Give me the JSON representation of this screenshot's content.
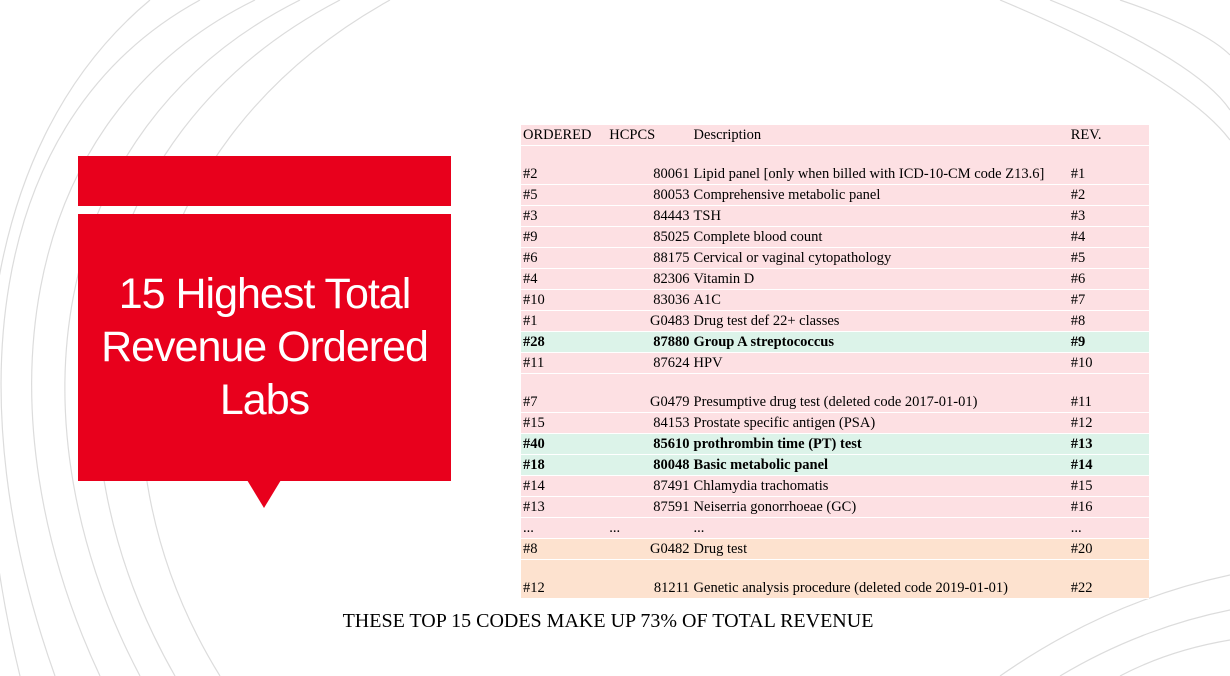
{
  "slide": {
    "title": "15 Highest Total Revenue Ordered Labs",
    "note": "THESE TOP 15 CODES MAKE UP 73% OF TOTAL REVENUE",
    "accent_color": "#e8001c"
  },
  "table": {
    "headers": {
      "ordered": "ORDERED",
      "hcpcs": "HCPCS",
      "description": "Description",
      "rev": "REV."
    },
    "rows": [
      {
        "ordered": "#2",
        "hcpcs": "80061",
        "description": "Lipid panel [only when billed with ICD-10-CM code Z13.6]",
        "rev": "#1",
        "style": "pink"
      },
      {
        "ordered": "#5",
        "hcpcs": "80053",
        "description": "Comprehensive metabolic panel",
        "rev": "#2",
        "style": "pink"
      },
      {
        "ordered": "#3",
        "hcpcs": "84443",
        "description": "TSH",
        "rev": "#3",
        "style": "pink"
      },
      {
        "ordered": "#9",
        "hcpcs": "85025",
        "description": "Complete blood count",
        "rev": "#4",
        "style": "pink"
      },
      {
        "ordered": "#6",
        "hcpcs": "88175",
        "description": "Cervical or vaginal cytopathology",
        "rev": "#5",
        "style": "pink"
      },
      {
        "ordered": "#4",
        "hcpcs": "82306",
        "description": "Vitamin D",
        "rev": "#6",
        "style": "pink"
      },
      {
        "ordered": "#10",
        "hcpcs": "83036",
        "description": "A1C",
        "rev": "#7",
        "style": "pink"
      },
      {
        "ordered": "#1",
        "hcpcs": "G0483",
        "description": "Drug test def 22+ classes",
        "rev": "#8",
        "style": "pink"
      },
      {
        "ordered": "#28",
        "hcpcs": "87880",
        "description": "Group A streptococcus",
        "rev": "#9",
        "style": "green"
      },
      {
        "ordered": "#11",
        "hcpcs": "87624",
        "description": "HPV",
        "rev": "#10",
        "style": "pink"
      },
      {
        "ordered": "#7",
        "hcpcs": "G0479",
        "description": "Presumptive drug test (deleted code 2017-01-01)",
        "rev": "#11",
        "style": "pink"
      },
      {
        "ordered": "#15",
        "hcpcs": "84153",
        "description": "Prostate specific antigen (PSA)",
        "rev": "#12",
        "style": "pink"
      },
      {
        "ordered": "#40",
        "hcpcs": "85610",
        "description": "prothrombin time (PT) test",
        "rev": "#13",
        "style": "green"
      },
      {
        "ordered": "#18",
        "hcpcs": "80048",
        "description": "Basic metabolic panel",
        "rev": "#14",
        "style": "green"
      },
      {
        "ordered": "#14",
        "hcpcs": "87491",
        "description": "Chlamydia trachomatis",
        "rev": "#15",
        "style": "pink"
      },
      {
        "ordered": "#13",
        "hcpcs": "87591",
        "description": "Neiserria gonorrhoeae (GC)",
        "rev": "#16",
        "style": "pink"
      },
      {
        "ordered": "...",
        "hcpcs": "...",
        "description": "...",
        "rev": "...",
        "style": "pink",
        "ellipsis": true
      },
      {
        "ordered": "#8",
        "hcpcs": "G0482",
        "description": "Drug test",
        "rev": "#20",
        "style": "orange"
      },
      {
        "ordered": "#12",
        "hcpcs": "81211",
        "description": "Genetic analysis procedure (deleted code 2019-01-01)",
        "rev": "#22",
        "style": "orange"
      }
    ]
  }
}
